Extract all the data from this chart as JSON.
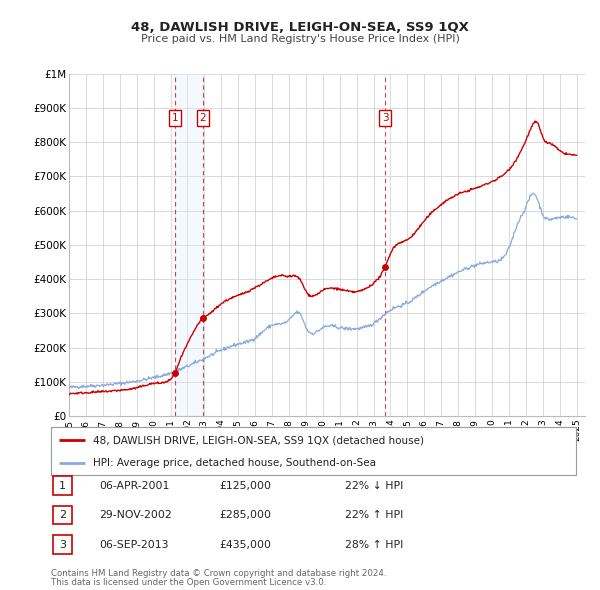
{
  "title": "48, DAWLISH DRIVE, LEIGH-ON-SEA, SS9 1QX",
  "subtitle": "Price paid vs. HM Land Registry's House Price Index (HPI)",
  "ylim": [
    0,
    1000000
  ],
  "yticks": [
    0,
    100000,
    200000,
    300000,
    400000,
    500000,
    600000,
    700000,
    800000,
    900000,
    1000000
  ],
  "ytick_labels": [
    "£0",
    "£100K",
    "£200K",
    "£300K",
    "£400K",
    "£500K",
    "£600K",
    "£700K",
    "£800K",
    "£900K",
    "£1M"
  ],
  "xlim_start": 1995.0,
  "xlim_end": 2025.5,
  "xticks": [
    1995,
    1996,
    1997,
    1998,
    1999,
    2000,
    2001,
    2002,
    2003,
    2004,
    2005,
    2006,
    2007,
    2008,
    2009,
    2010,
    2011,
    2012,
    2013,
    2014,
    2015,
    2016,
    2017,
    2018,
    2019,
    2020,
    2021,
    2022,
    2023,
    2024,
    2025
  ],
  "line1_color": "#cc0000",
  "line2_color": "#88aadd",
  "grid_color": "#cccccc",
  "background_color": "#ffffff",
  "sale_marker_color": "#cc0000",
  "vline_color": "#cc4444",
  "span_color": "#ddeeff",
  "transaction1_x": 2001.27,
  "transaction1_y": 125000,
  "transaction2_x": 2002.91,
  "transaction2_y": 285000,
  "transaction3_x": 2013.68,
  "transaction3_y": 435000,
  "legend_line1": "48, DAWLISH DRIVE, LEIGH-ON-SEA, SS9 1QX (detached house)",
  "legend_line2": "HPI: Average price, detached house, Southend-on-Sea",
  "table_rows": [
    {
      "num": "1",
      "date": "06-APR-2001",
      "price": "£125,000",
      "change": "22% ↓ HPI"
    },
    {
      "num": "2",
      "date": "29-NOV-2002",
      "price": "£285,000",
      "change": "22% ↑ HPI"
    },
    {
      "num": "3",
      "date": "06-SEP-2013",
      "price": "£435,000",
      "change": "28% ↑ HPI"
    }
  ],
  "footnote1": "Contains HM Land Registry data © Crown copyright and database right 2024.",
  "footnote2": "This data is licensed under the Open Government Licence v3.0."
}
